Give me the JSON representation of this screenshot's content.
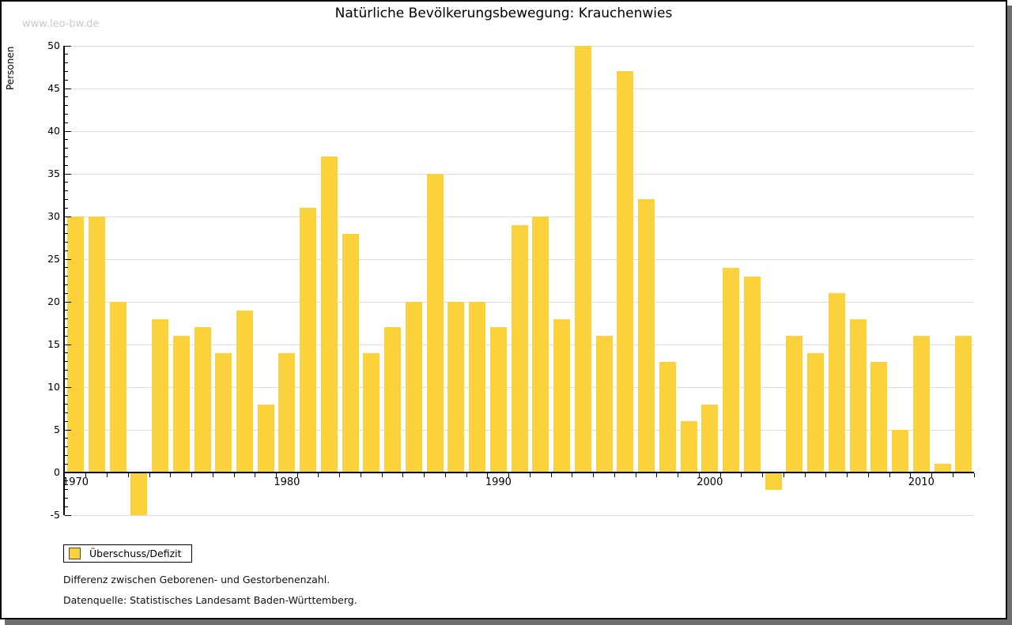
{
  "page": {
    "watermark": "www.leo-bw.de"
  },
  "colors": {
    "bar": "#FBD23B",
    "bar_border": "#4A4A4A",
    "gridline": "#DEDEDE",
    "axis": "#000000",
    "watermark": "#C8C8C8",
    "shadow": "#6E6E6E"
  },
  "chart_data": {
    "type": "bar",
    "title": "Natürliche Bevölkerungsbewegung: Krauchenwies",
    "ylabel": "Personen",
    "xlabel": "",
    "ylim": [
      -5,
      50
    ],
    "ytick_step": 5,
    "y_minor_tick_step": 1,
    "grid": "horizontal",
    "legend_label": "Überschuss/Defizit",
    "legend_position": "bottom-left",
    "x_tick_labels": [
      "1970",
      "1980",
      "1990",
      "2000",
      "2010"
    ],
    "categories": [
      1970,
      1971,
      1972,
      1973,
      1974,
      1975,
      1976,
      1977,
      1978,
      1979,
      1980,
      1981,
      1982,
      1983,
      1984,
      1985,
      1986,
      1987,
      1988,
      1989,
      1990,
      1991,
      1992,
      1993,
      1994,
      1995,
      1996,
      1997,
      1998,
      1999,
      2000,
      2001,
      2002,
      2003,
      2004,
      2005,
      2006,
      2007,
      2008,
      2009,
      2010,
      2011,
      2012
    ],
    "values": [
      30,
      30,
      20,
      -5,
      18,
      16,
      17,
      14,
      19,
      8,
      14,
      31,
      37,
      28,
      14,
      17,
      20,
      35,
      20,
      20,
      17,
      29,
      30,
      18,
      50,
      16,
      47,
      32,
      13,
      6,
      8,
      24,
      23,
      -2,
      16,
      14,
      21,
      18,
      13,
      5,
      16,
      1,
      16
    ]
  },
  "footnotes": [
    "Differenz zwischen Geborenen- und Gestorbenenzahl.",
    "Datenquelle: Statistisches Landesamt Baden-Württemberg."
  ]
}
